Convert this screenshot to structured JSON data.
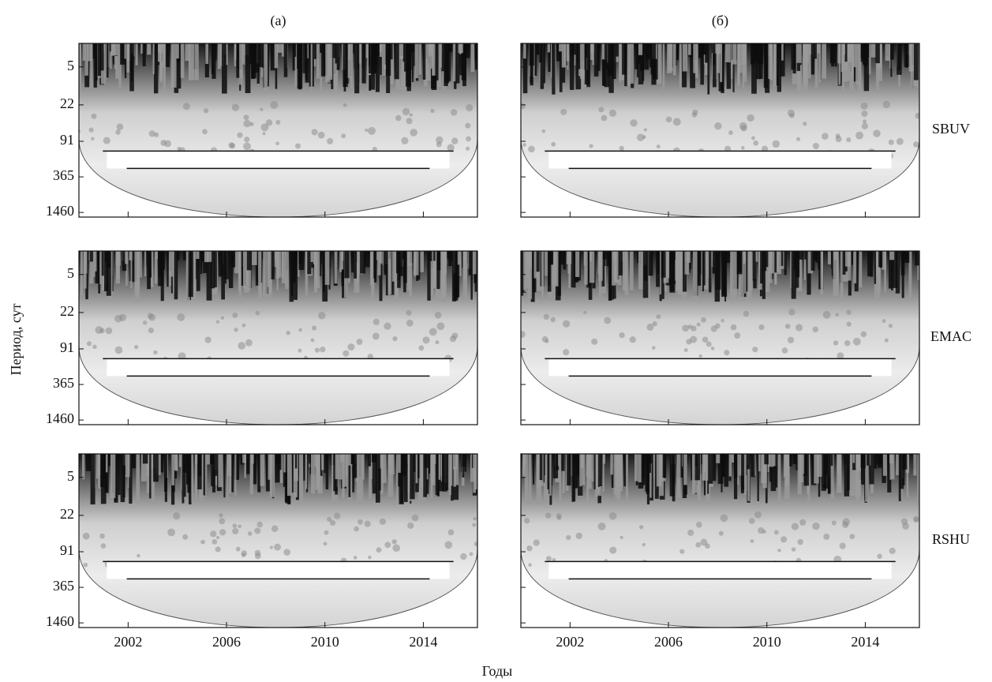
{
  "chart_data": {
    "type": "wavelet",
    "columns": [
      "(а)",
      "(б)"
    ],
    "rows": [
      "SBUV",
      "EMAC",
      "RSHU"
    ],
    "ylabel": "Период, сут",
    "xlabel": "Годы",
    "ylog": true,
    "ylim": [
      2,
      1750
    ],
    "yticks": [
      5,
      22,
      91,
      365,
      1460
    ],
    "xlim": [
      2000,
      2016.2
    ],
    "xticks": [
      2002,
      2006,
      2010,
      2014
    ]
  }
}
